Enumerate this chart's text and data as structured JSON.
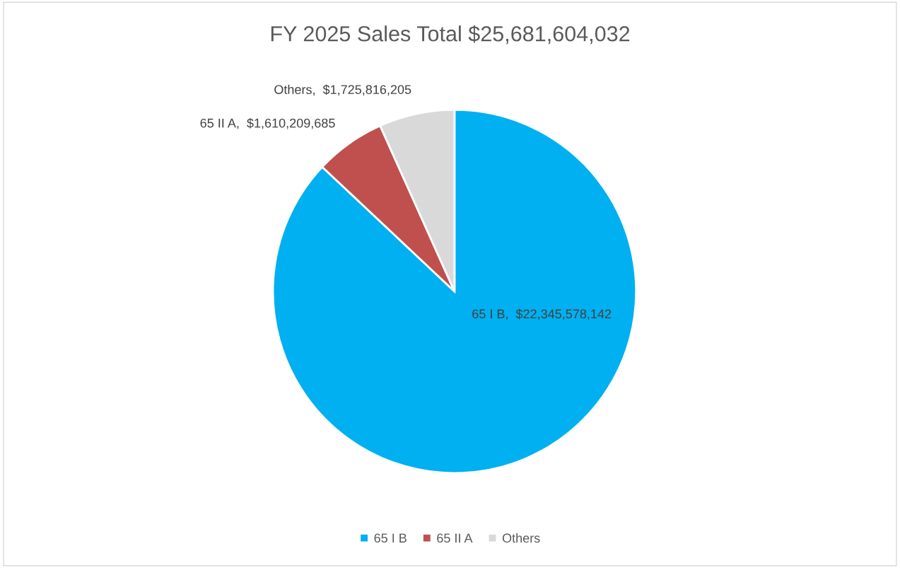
{
  "chart_data": {
    "type": "pie",
    "title": "FY 2025 Sales Total $25,681,604,032",
    "categories": [
      "65 I B",
      "65 II A",
      "Others"
    ],
    "values": [
      22345578142,
      1610209685,
      1725816205
    ],
    "value_labels": [
      "65 I B,  $22,345,578,142",
      "65 II A,  $1,610,209,685",
      "Others,  $1,725,816,205"
    ],
    "colors": [
      "#00b0f0",
      "#c0504d",
      "#d9d9d9"
    ],
    "legend": "bottom"
  }
}
